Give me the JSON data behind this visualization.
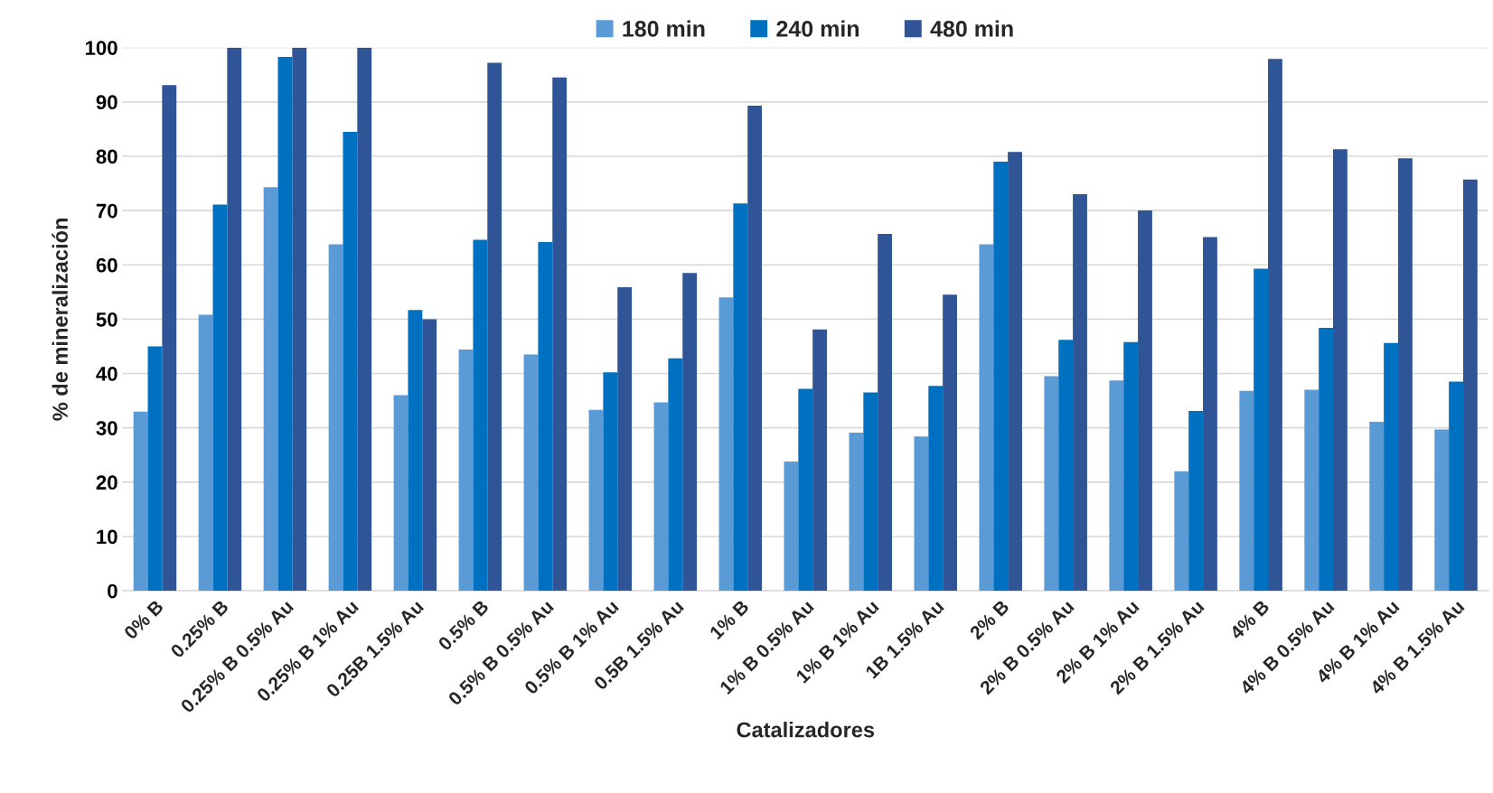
{
  "chart_data": {
    "type": "bar",
    "xlabel": "Catalizadores",
    "ylabel": "% de mineralización",
    "categories": [
      "0% B",
      "0.25% B",
      "0.25% B 0.5% Au",
      "0.25% B 1% Au",
      "0.25B 1.5% Au",
      "0.5% B",
      "0.5% B 0.5% Au",
      "0.5% B 1% Au",
      "0.5B 1.5% Au",
      "1% B",
      "1% B 0.5% Au",
      "1% B 1% Au",
      "1B 1.5% Au",
      "2% B",
      "2% B 0.5% Au",
      "2% B 1% Au",
      "2% B 1.5% Au",
      "4% B",
      "4% B 0.5% Au",
      "4% B 1% Au",
      "4% B 1.5% Au"
    ],
    "series": [
      {
        "name": "180 min",
        "color": "#5b9bd5",
        "values": [
          33,
          50.8,
          74.3,
          63.8,
          36,
          44.4,
          43.5,
          33.3,
          34.7,
          54,
          23.8,
          29.1,
          28.4,
          63.8,
          39.5,
          38.7,
          22,
          36.8,
          37,
          31.1,
          29.7
        ]
      },
      {
        "name": "240 min",
        "color": "#0070c0",
        "values": [
          45,
          71.1,
          98.3,
          84.5,
          51.7,
          64.6,
          64.2,
          40.2,
          42.8,
          71.3,
          37.2,
          36.5,
          37.7,
          79,
          46.2,
          45.8,
          33.1,
          59.3,
          48.4,
          45.6,
          38.5
        ]
      },
      {
        "name": "480 min",
        "color": "#2f5597",
        "values": [
          93.1,
          100,
          100,
          100,
          50,
          97.2,
          94.5,
          55.9,
          58.5,
          89.3,
          48.1,
          65.7,
          54.5,
          80.8,
          73,
          70,
          65.1,
          97.9,
          81.3,
          79.6,
          75.7
        ]
      }
    ],
    "ylim": [
      0,
      100
    ],
    "yticks": [
      0,
      10,
      20,
      30,
      40,
      50,
      60,
      70,
      80,
      90,
      100
    ],
    "grid": "y",
    "legend": "top"
  }
}
